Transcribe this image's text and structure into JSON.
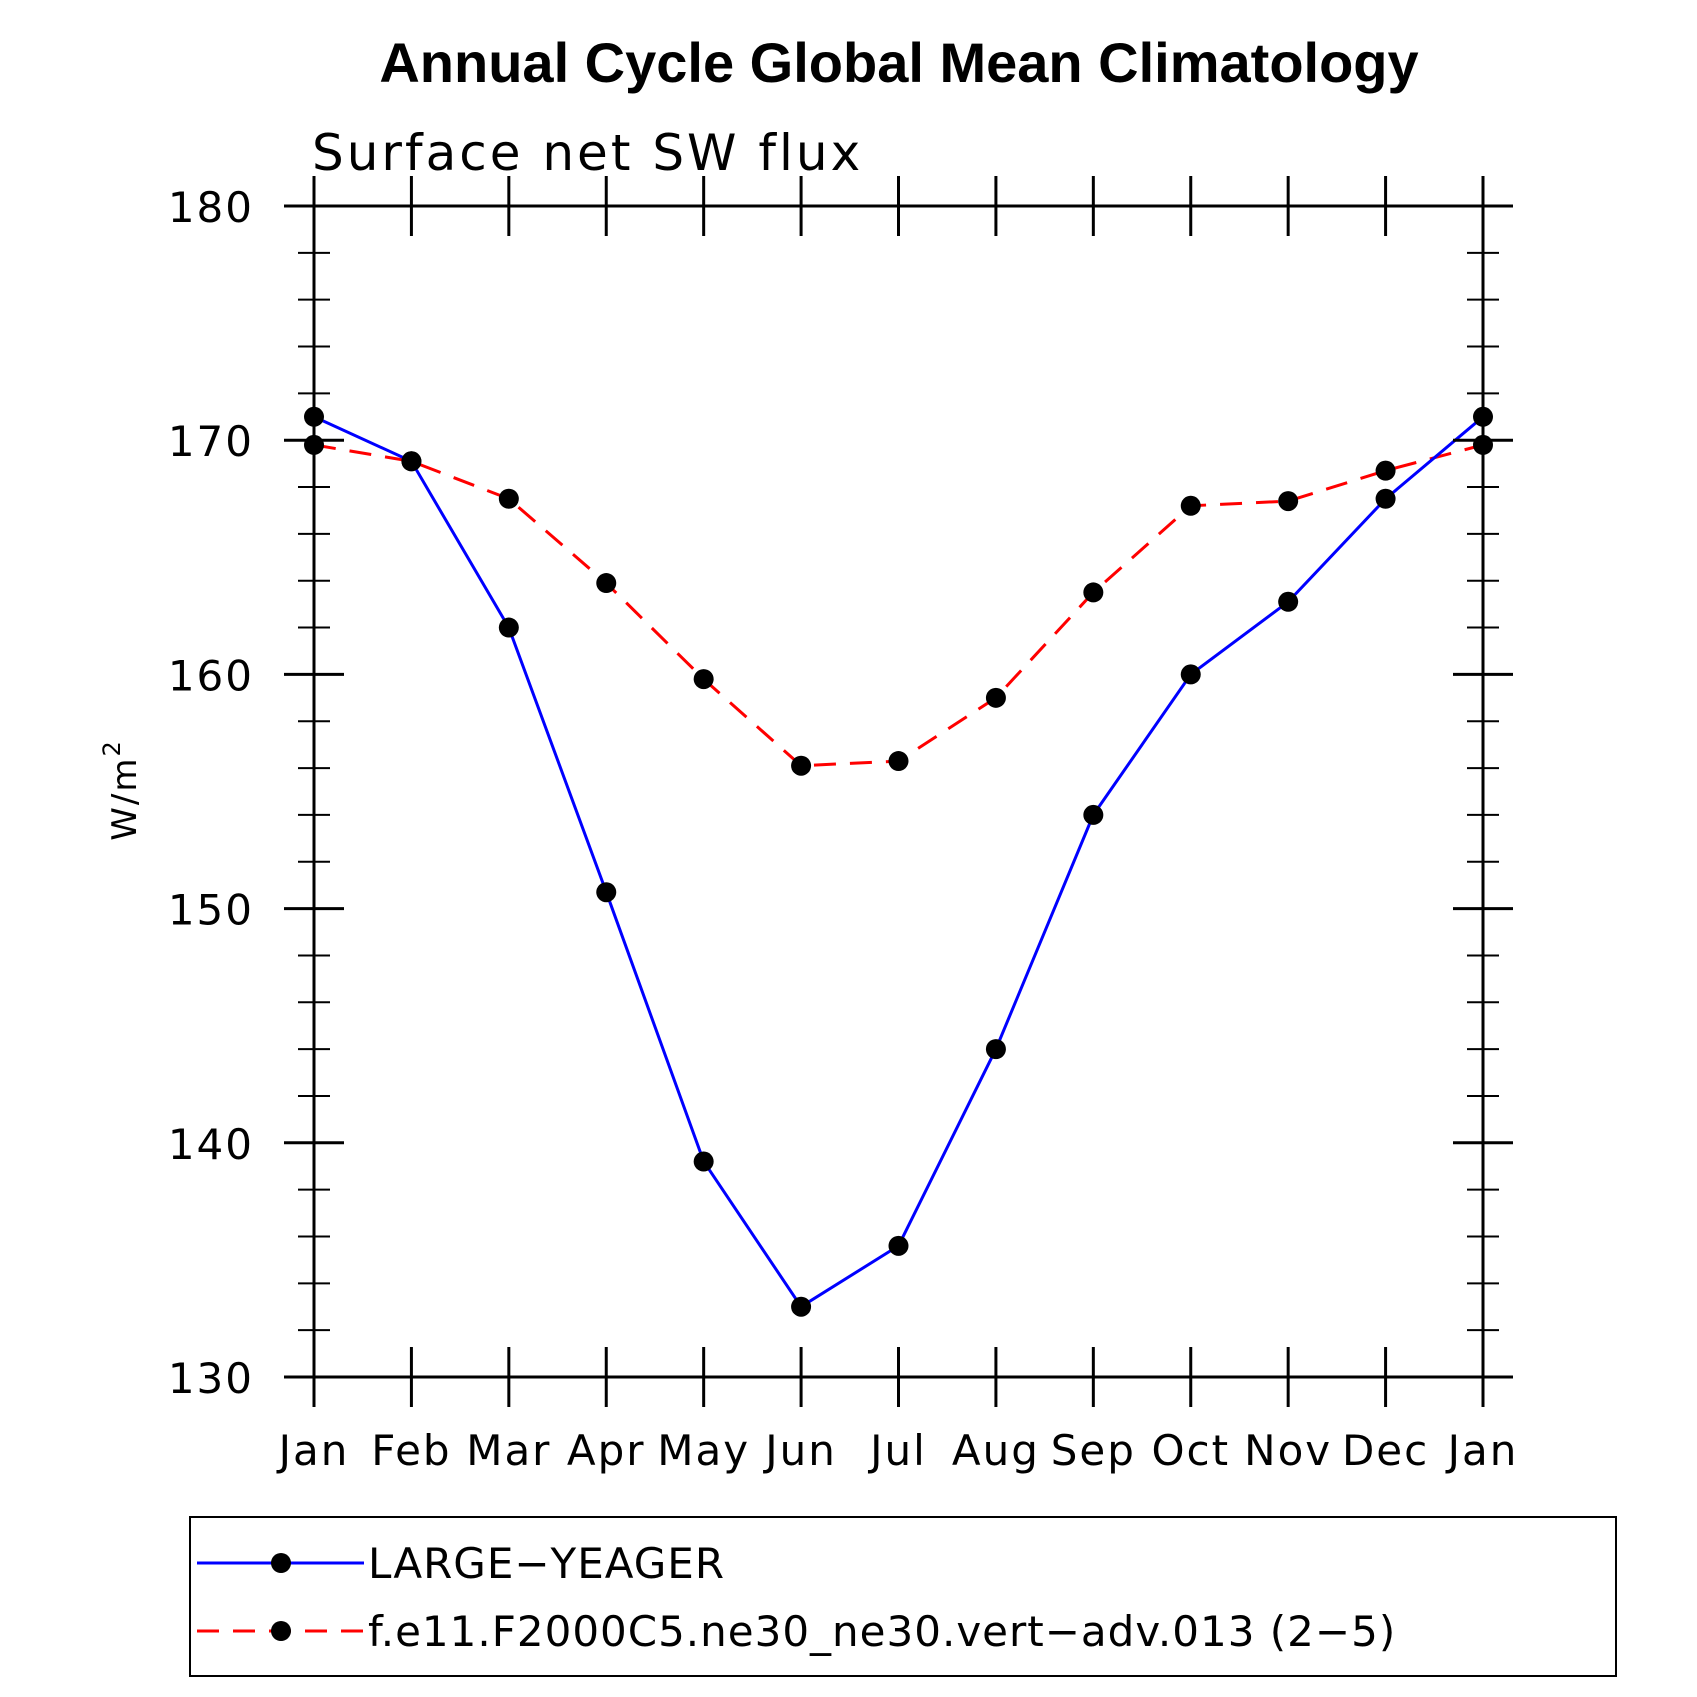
{
  "chart_data": {
    "type": "line",
    "title": "Annual Cycle Global Mean Climatology",
    "subtitle": "Surface net SW flux",
    "ylabel": "W/m",
    "ylabel_superscript": "2",
    "ylim": [
      130,
      180
    ],
    "yticks": [
      130,
      140,
      150,
      160,
      170,
      180
    ],
    "categories": [
      "Jan",
      "Feb",
      "Mar",
      "Apr",
      "May",
      "Jun",
      "Jul",
      "Aug",
      "Sep",
      "Oct",
      "Nov",
      "Dec",
      "Jan"
    ],
    "grid": false,
    "legend_placement": "bottom",
    "series": [
      {
        "name": "LARGE−YEAGER",
        "color": "#0000ff",
        "dash": "solid",
        "marker": "filled-circle",
        "values": [
          171.0,
          169.1,
          162.0,
          150.7,
          139.2,
          133.0,
          135.6,
          144.0,
          154.0,
          160.0,
          163.1,
          167.5,
          171.0
        ]
      },
      {
        "name": "f.e11.F2000C5.ne30_ne30.vert−adv.013 (2−5)",
        "color": "#ff0000",
        "dash": "dashed",
        "marker": "filled-circle",
        "values": [
          169.8,
          169.1,
          167.5,
          163.9,
          159.8,
          156.1,
          156.3,
          159.0,
          163.5,
          167.2,
          167.4,
          168.7,
          169.8
        ]
      }
    ]
  }
}
